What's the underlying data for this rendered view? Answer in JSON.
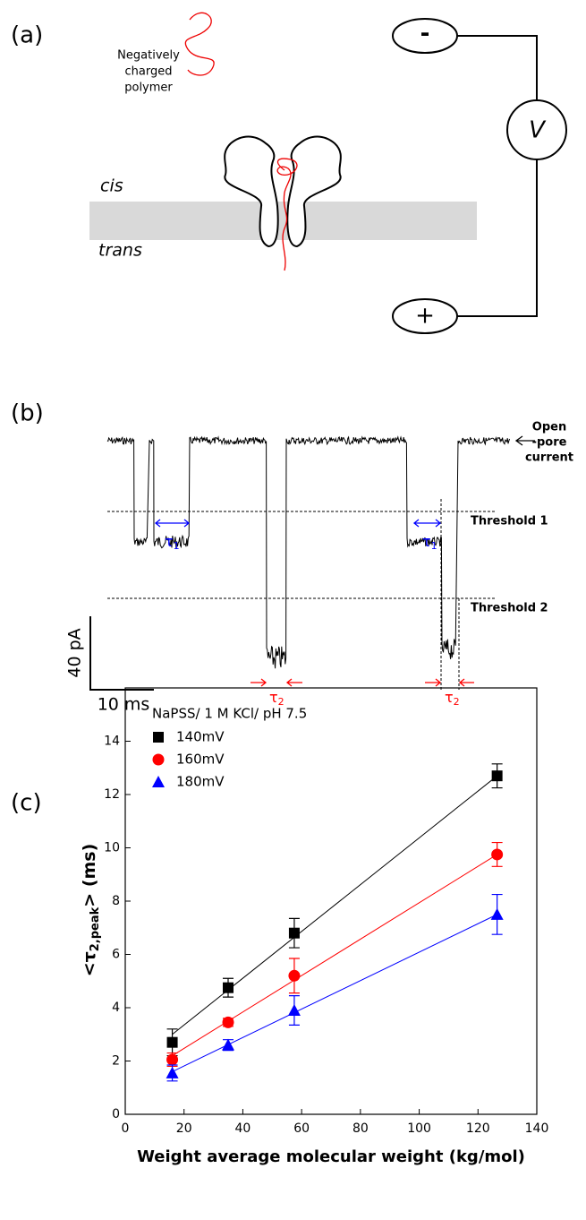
{
  "panel_a": {
    "label": "(a)",
    "polymer_label": [
      "Negatively",
      "charged",
      "polymer"
    ],
    "cis": "cis",
    "trans": "trans",
    "minus": "-",
    "plus": "+",
    "voltage": "V"
  },
  "panel_b": {
    "label": "(b)",
    "open_pore": [
      "Open",
      "-pore",
      "current"
    ],
    "threshold_1": "Threshold 1",
    "threshold_2": "Threshold 2",
    "tau_1": {
      "symbol": "τ",
      "subscript": "1"
    },
    "tau_2": {
      "symbol": "τ",
      "subscript": "2"
    },
    "scale_y": "40 pA",
    "scale_x": "10 ms"
  },
  "chart_data": {
    "type": "scatter",
    "panel_label": "(c)",
    "x_label": "Weight average molecular weight (kg/mol)",
    "y_label": {
      "before": "<τ",
      "subscript": "2,peak",
      "after": "> (ms)"
    },
    "legend_title": "NaPSS/ 1 M KCl/ pH 7.5",
    "x": [
      16,
      35,
      57.5,
      126.5
    ],
    "series": [
      {
        "name": "140mV",
        "color": "#000000",
        "marker": "square",
        "values": [
          2.7,
          4.75,
          6.8,
          12.7
        ],
        "errors": [
          0.5,
          0.35,
          0.55,
          0.45
        ],
        "fit": [
          3.0,
          12.7
        ]
      },
      {
        "name": "160mV",
        "color": "#ff0000",
        "marker": "circle",
        "values": [
          2.05,
          3.45,
          5.2,
          9.75
        ],
        "errors": [
          0.25,
          0.15,
          0.65,
          0.45
        ],
        "fit": [
          2.2,
          9.75
        ]
      },
      {
        "name": "180mV",
        "color": "#0000ff",
        "marker": "triangle",
        "values": [
          1.55,
          2.6,
          3.9,
          7.5
        ],
        "errors": [
          0.3,
          0.2,
          0.55,
          0.75
        ],
        "fit": [
          1.6,
          7.5
        ]
      }
    ],
    "xlim": [
      0,
      140
    ],
    "xticks": [
      0,
      20,
      40,
      60,
      80,
      100,
      120,
      140
    ],
    "ylim": [
      0,
      16
    ],
    "yticks": [
      0,
      2,
      4,
      6,
      8,
      10,
      12,
      14
    ]
  }
}
